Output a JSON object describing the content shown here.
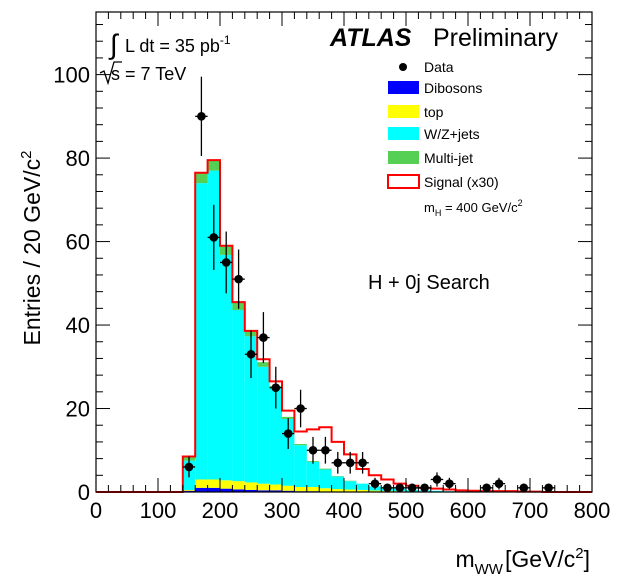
{
  "chart_data": {
    "type": "histogram",
    "header": {
      "experiment": "ATLAS",
      "status": "Preliminary"
    },
    "lumi_label": "L dt = 35 pb",
    "lumi_sup": "-1",
    "energy_label": "s = 7 TeV",
    "channel_label": "H + 0j Search",
    "xlabel": {
      "main": "m",
      "sub": "WW",
      "unit": "[GeV/c",
      "sup": "2",
      "close": "]"
    },
    "ylabel": {
      "main": "Entries / 20 GeV/c",
      "sup": "2"
    },
    "xlim": [
      0,
      800
    ],
    "ylim": [
      0,
      115
    ],
    "bin_width": 20,
    "xticks": [
      0,
      100,
      200,
      300,
      400,
      500,
      600,
      700,
      800
    ],
    "yticks": [
      0,
      20,
      40,
      60,
      80,
      100
    ],
    "legend": {
      "position": "top-right",
      "items": [
        {
          "key": "data",
          "label": "Data"
        },
        {
          "key": "dibosons",
          "label": "Dibosons",
          "color": "#0000ff"
        },
        {
          "key": "top",
          "label": "top",
          "color": "#ffff00"
        },
        {
          "key": "wzjets",
          "label": "W/Z+jets",
          "color": "#00ffff"
        },
        {
          "key": "multijet",
          "label": "Multi-jet",
          "color": "#55d055"
        },
        {
          "key": "signal",
          "label": "Signal (x30)",
          "color": "#ff0000"
        }
      ],
      "mass_label": {
        "main": "m",
        "sub": "H",
        "text": " = 400 GeV/c",
        "sup": "2"
      }
    },
    "bins_low_edge": [
      140,
      160,
      180,
      200,
      220,
      240,
      260,
      280,
      300,
      320,
      340,
      360,
      380,
      400,
      420,
      440,
      460,
      480,
      500,
      520,
      540,
      560,
      580,
      600,
      620,
      640,
      660,
      680,
      700,
      720,
      740,
      760,
      780
    ],
    "stack": [
      {
        "name": "Dibosons",
        "values": [
          0.3,
          1.0,
          1.0,
          0.8,
          0.6,
          0.5,
          0.4,
          0.4,
          0.3,
          0.2,
          0.2,
          0.1,
          0.1,
          0.1,
          0.1,
          0.05,
          0.05,
          0,
          0,
          0,
          0,
          0,
          0,
          0,
          0,
          0,
          0,
          0,
          0,
          0,
          0,
          0,
          0
        ]
      },
      {
        "name": "top",
        "values": [
          0.2,
          2.0,
          2.0,
          2.0,
          2.0,
          1.8,
          1.6,
          1.4,
          1.2,
          1.0,
          1.0,
          0.8,
          0.6,
          0.5,
          0.4,
          0.3,
          0.2,
          0.2,
          0.1,
          0.1,
          0,
          0,
          0,
          0,
          0,
          0,
          0,
          0,
          0,
          0,
          0,
          0,
          0
        ]
      },
      {
        "name": "W/Z+jets",
        "values": [
          7.0,
          71.0,
          74.0,
          54.0,
          41.0,
          35.0,
          28.0,
          23.0,
          16.0,
          10.0,
          6.0,
          4.5,
          3.0,
          2.0,
          1.5,
          1.0,
          0.8,
          0.6,
          0.4,
          0.3,
          0.3,
          0.2,
          0.2,
          0.1,
          0.1,
          0,
          0,
          0,
          0,
          0,
          0,
          0,
          0
        ]
      },
      {
        "name": "Multi-jet",
        "values": [
          1.0,
          2.5,
          2.5,
          2.0,
          1.8,
          1.3,
          1.1,
          0.6,
          0.5,
          0.3,
          0.2,
          0.2,
          0.1,
          0.1,
          0,
          0,
          0,
          0,
          0,
          0,
          0,
          0,
          0,
          0,
          0,
          0,
          0,
          0,
          0,
          0,
          0,
          0,
          0
        ]
      }
    ],
    "signal_x30": [
      8.5,
      76.5,
      79.5,
      59.0,
      45.5,
      38.6,
      31.8,
      26.5,
      19.5,
      14.5,
      15.0,
      15.5,
      12.0,
      9.0,
      5.5,
      4.0,
      3.0,
      2.0,
      1.5,
      1.0,
      0.8,
      0.6,
      0.4,
      0.3,
      0.2,
      0.2,
      0.2,
      0.1,
      0.1,
      0,
      0,
      0,
      0
    ],
    "data_points": [
      {
        "x": 150,
        "y": 6,
        "err": 2.5
      },
      {
        "x": 170,
        "y": 90,
        "err": 9.5
      },
      {
        "x": 190,
        "y": 61,
        "err": 7.8
      },
      {
        "x": 210,
        "y": 55,
        "err": 7.4
      },
      {
        "x": 230,
        "y": 51,
        "err": 7.1
      },
      {
        "x": 250,
        "y": 33,
        "err": 5.7
      },
      {
        "x": 270,
        "y": 37,
        "err": 6.1
      },
      {
        "x": 290,
        "y": 25,
        "err": 5.0
      },
      {
        "x": 310,
        "y": 14,
        "err": 3.7
      },
      {
        "x": 330,
        "y": 20,
        "err": 4.5
      },
      {
        "x": 350,
        "y": 10,
        "err": 3.2
      },
      {
        "x": 370,
        "y": 10,
        "err": 3.2
      },
      {
        "x": 390,
        "y": 7,
        "err": 2.6
      },
      {
        "x": 410,
        "y": 7,
        "err": 2.6
      },
      {
        "x": 430,
        "y": 7,
        "err": 2.6
      },
      {
        "x": 450,
        "y": 2,
        "err": 1.4
      },
      {
        "x": 470,
        "y": 1,
        "err": 1.0
      },
      {
        "x": 490,
        "y": 1,
        "err": 1.0
      },
      {
        "x": 510,
        "y": 1,
        "err": 1.0
      },
      {
        "x": 530,
        "y": 1,
        "err": 1.0
      },
      {
        "x": 550,
        "y": 3,
        "err": 1.7
      },
      {
        "x": 570,
        "y": 2,
        "err": 1.4
      },
      {
        "x": 630,
        "y": 1,
        "err": 1.0
      },
      {
        "x": 650,
        "y": 2,
        "err": 1.4
      },
      {
        "x": 690,
        "y": 1,
        "err": 1.0
      },
      {
        "x": 730,
        "y": 1,
        "err": 1.0
      }
    ]
  }
}
